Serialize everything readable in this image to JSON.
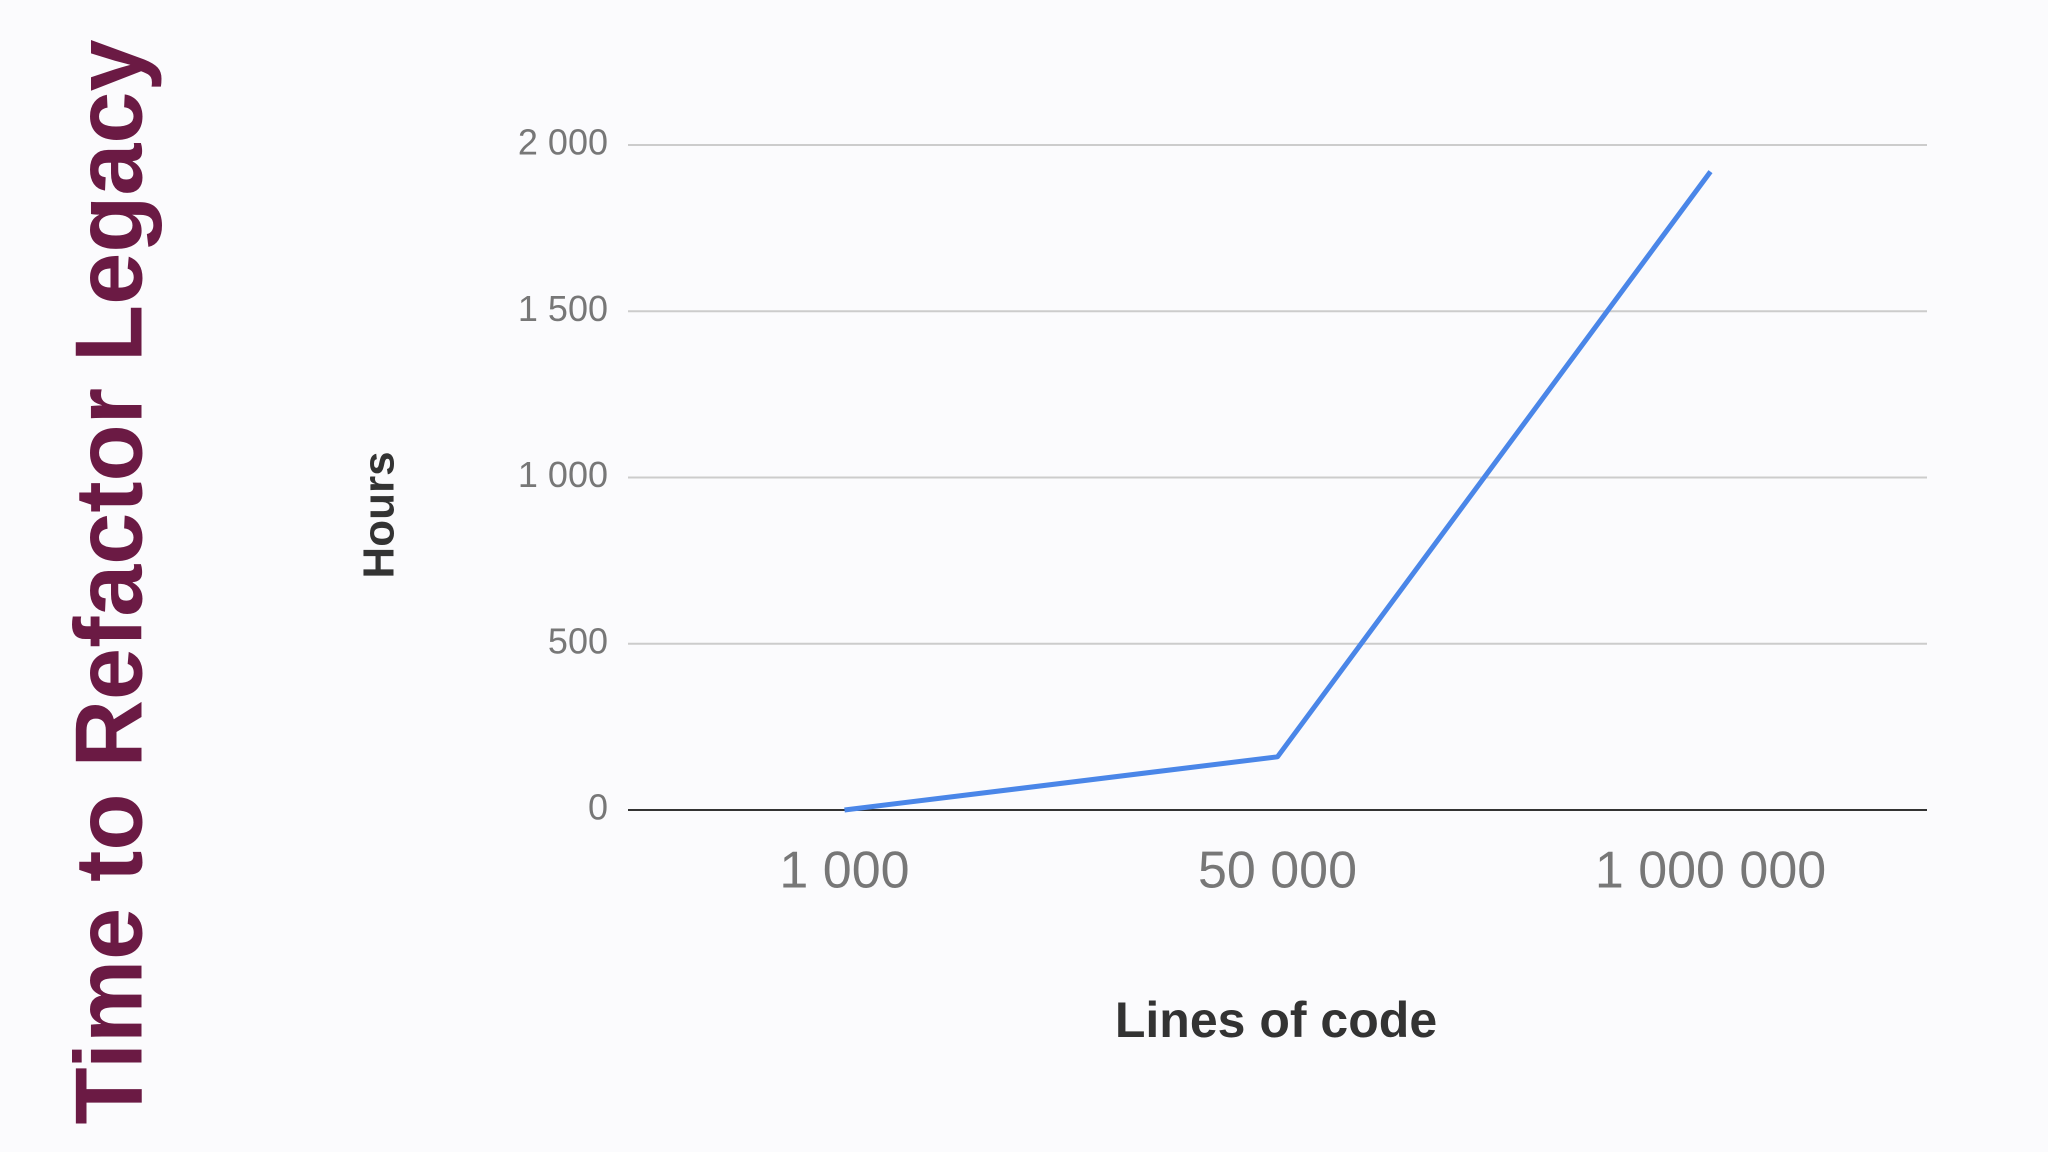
{
  "chart_data": {
    "type": "line",
    "title": "Time to Refactor Legacy",
    "x_label": "Lines of code",
    "y_label": "Hours",
    "categories": [
      "1 000",
      "50 000",
      "1 000 000"
    ],
    "values": [
      0,
      160,
      1920
    ],
    "color": "#4a86e8",
    "ylim": [
      0,
      2000
    ],
    "yticks": [
      0,
      500,
      {
        "value": 1000,
        "label": "1 000"
      },
      {
        "value": 1500,
        "label": "1 500"
      },
      {
        "value": 2000,
        "label": "2 000"
      }
    ],
    "grid": true
  }
}
